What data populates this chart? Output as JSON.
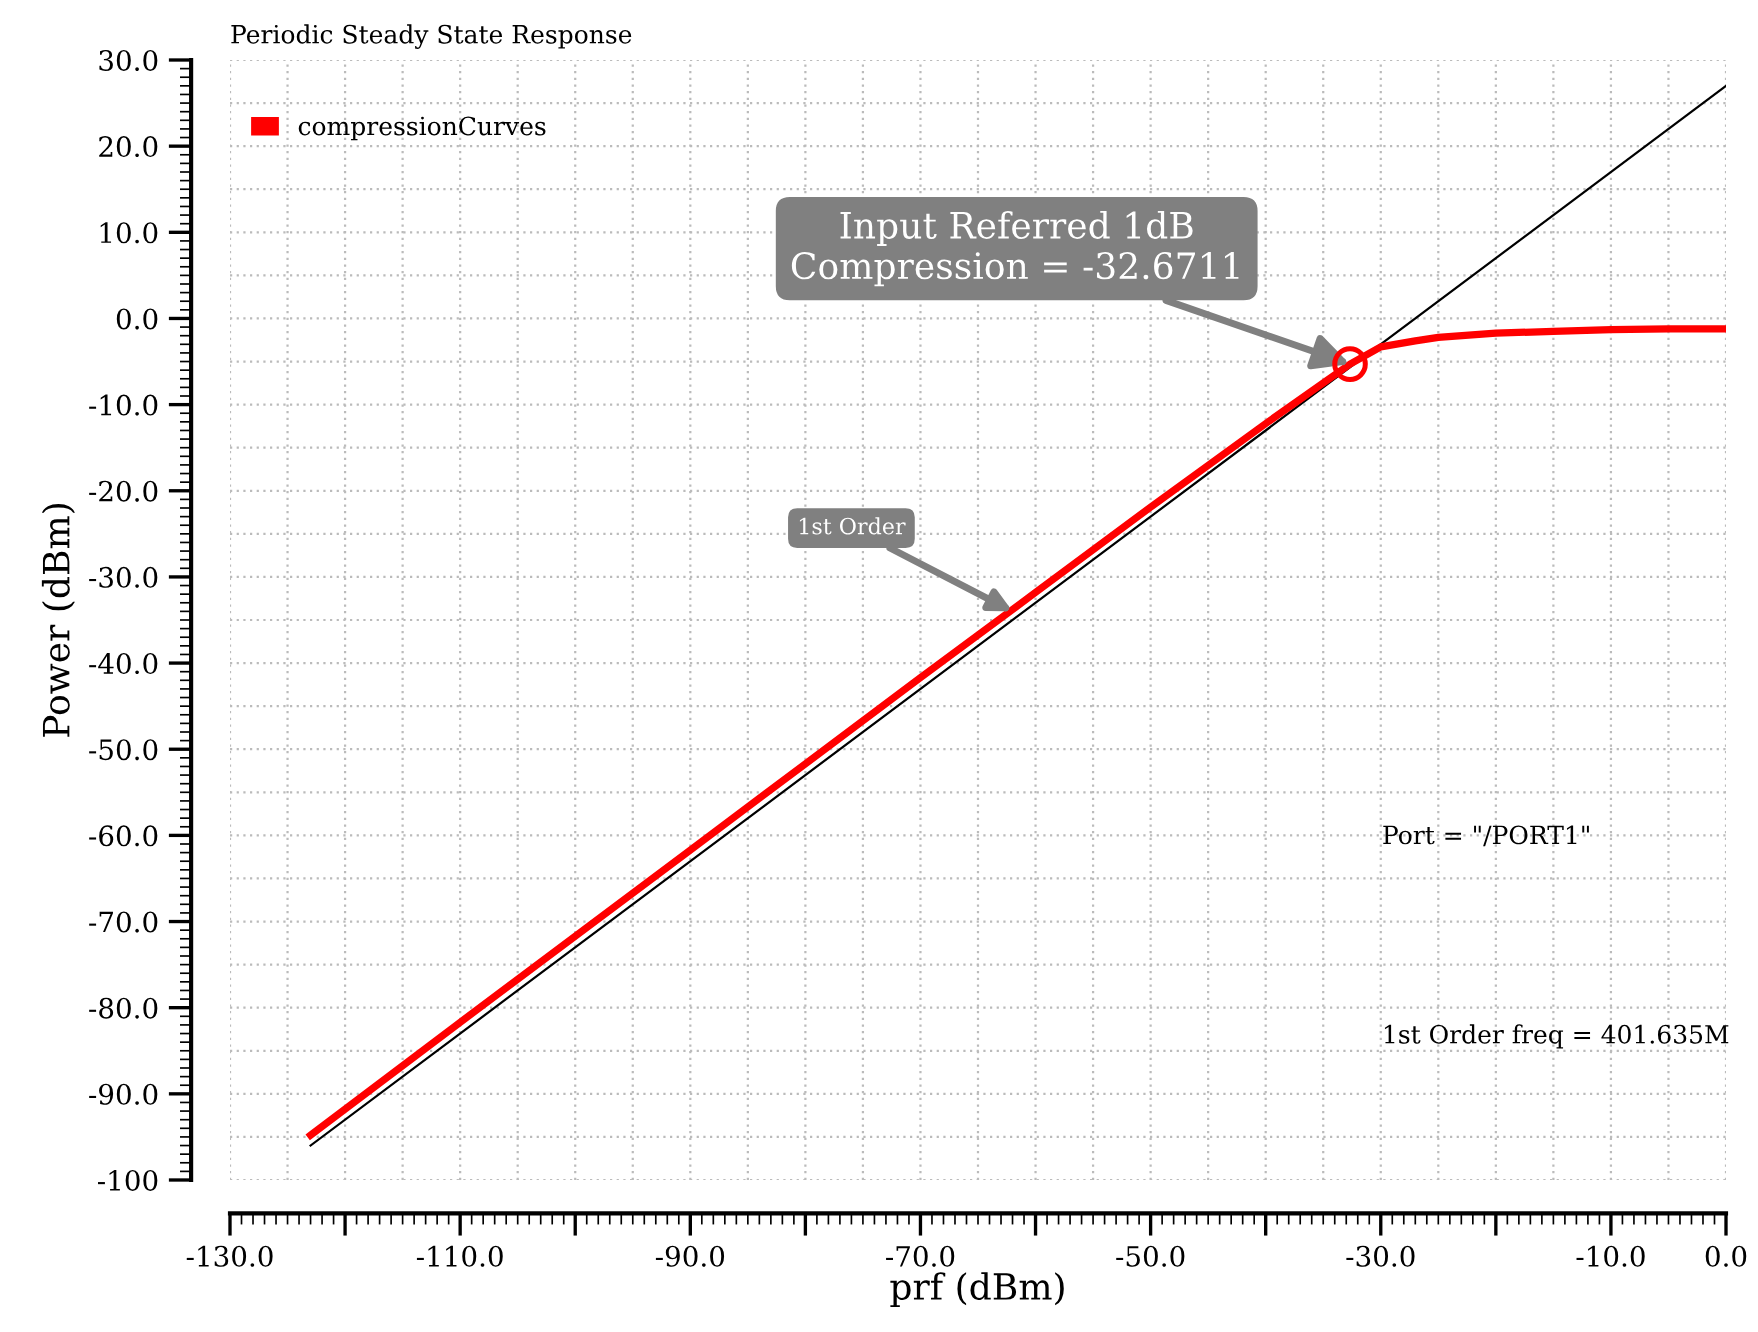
{
  "chart_data": {
    "type": "line",
    "title": "Periodic Steady State Response",
    "xlabel": "prf (dBm)",
    "ylabel": "Power (dBm)",
    "series": [
      {
        "name": "compressionCurves",
        "color": "#ff0000",
        "x": [
          -123,
          -110,
          -90,
          -70,
          -60,
          -50,
          -40,
          -35,
          -32.6711,
          -30,
          -27,
          -25,
          -20,
          -15,
          -10,
          -5,
          0
        ],
        "values": [
          -94.8,
          -81.7,
          -61.7,
          -41.7,
          -31.8,
          -21.9,
          -12.2,
          -7.5,
          -5.3,
          -3.3,
          -2.6,
          -2.2,
          -1.7,
          -1.5,
          -1.3,
          -1.2,
          -1.2
        ]
      },
      {
        "color": "#000000",
        "x": [
          -123,
          0
        ],
        "values": [
          -96,
          27
        ]
      }
    ],
    "xlim": [
      -130,
      0
    ],
    "ylim": [
      -100,
      30
    ],
    "xticks": [
      {
        "value": -130,
        "label": "-130.0"
      },
      {
        "value": -120,
        "label": null
      },
      {
        "value": -110,
        "label": "-110.0"
      },
      {
        "value": -100,
        "label": null
      },
      {
        "value": -90,
        "label": "-90.0"
      },
      {
        "value": -80,
        "label": null
      },
      {
        "value": -70,
        "label": "-70.0"
      },
      {
        "value": -60,
        "label": null
      },
      {
        "value": -50,
        "label": "-50.0"
      },
      {
        "value": -40,
        "label": null
      },
      {
        "value": -30,
        "label": "-30.0"
      },
      {
        "value": -20,
        "label": null
      },
      {
        "value": -10,
        "label": "-10.0"
      },
      {
        "value": 0,
        "label": "0.0"
      }
    ],
    "yticks": [
      {
        "value": 30,
        "label": "30.0"
      },
      {
        "value": 20,
        "label": "20.0"
      },
      {
        "value": 10,
        "label": "10.0"
      },
      {
        "value": 0,
        "label": "0.0"
      },
      {
        "value": -10,
        "label": "-10.0"
      },
      {
        "value": -20,
        "label": "-20.0"
      },
      {
        "value": -30,
        "label": "-30.0"
      },
      {
        "value": -40,
        "label": "-40.0"
      },
      {
        "value": -50,
        "label": "-50.0"
      },
      {
        "value": -60,
        "label": "-60.0"
      },
      {
        "value": -70,
        "label": "-70.0"
      },
      {
        "value": -80,
        "label": "-80.0"
      },
      {
        "value": -90,
        "label": "-90.0"
      },
      {
        "value": -100,
        "label": "-100"
      }
    ],
    "grid": true,
    "legend": "top left",
    "annotations": [
      {
        "text": "Input Referred 1dB\nCompression = -32.6711",
        "x": -32.6711,
        "y": -5.3
      },
      {
        "text": "1st Order",
        "x": -62,
        "y": -34
      },
      "Port = \"/PORT1\"",
      "1st Order freq = 401.635M"
    ]
  }
}
